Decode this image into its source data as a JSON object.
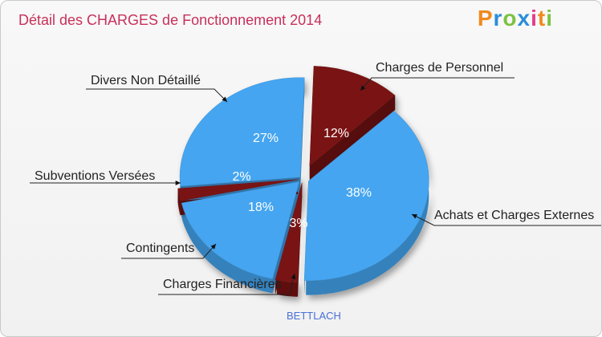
{
  "header": {
    "title": "Détail des CHARGES de Fonctionnement 2014"
  },
  "logo": {
    "text": "Proxiti"
  },
  "footer": {
    "commune": "BETTLACH"
  },
  "colors": {
    "blue": "#45a5f0",
    "darkred": "#7a1414"
  },
  "chart_data": {
    "type": "pie",
    "title": "Détail des CHARGES de Fonctionnement 2014",
    "slices": [
      {
        "label": "Charges de Personnel",
        "percent": 12,
        "percent_label": "12%",
        "color": "#7a1414"
      },
      {
        "label": "Achats et Charges Externes",
        "percent": 38,
        "percent_label": "38%",
        "color": "#45a5f0"
      },
      {
        "label": "Charges Financières",
        "percent": 3,
        "percent_label": "3%",
        "color": "#7a1414"
      },
      {
        "label": "Contingents",
        "percent": 18,
        "percent_label": "18%",
        "color": "#45a5f0"
      },
      {
        "label": "Subventions Versées",
        "percent": 2,
        "percent_label": "2%",
        "color": "#7a1414"
      },
      {
        "label": "Divers Non Détaillé",
        "percent": 27,
        "percent_label": "27%",
        "color": "#45a5f0"
      }
    ]
  }
}
